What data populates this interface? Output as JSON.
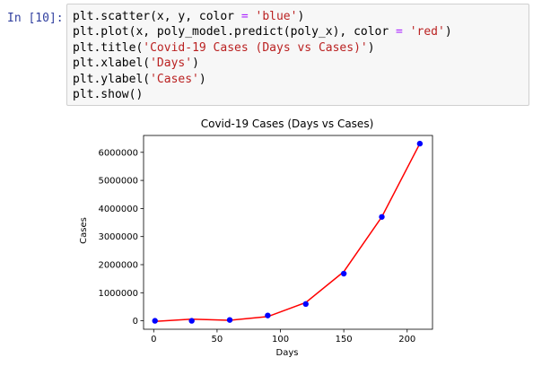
{
  "notebook": {
    "prompt": "In [10]:",
    "code_lines": [
      [
        {
          "t": "plt.scatter(x, y, color "
        },
        {
          "t": "=",
          "c": "op"
        },
        {
          "t": " "
        },
        {
          "t": "'blue'",
          "c": "kw-str"
        },
        {
          "t": ")"
        }
      ],
      [
        {
          "t": "plt.plot(x, poly_model.predict(poly_x), color "
        },
        {
          "t": "=",
          "c": "op"
        },
        {
          "t": " "
        },
        {
          "t": "'red'",
          "c": "kw-str"
        },
        {
          "t": ")"
        }
      ],
      [
        {
          "t": "plt.title("
        },
        {
          "t": "'Covid-19 Cases (Days vs Cases)'",
          "c": "kw-str"
        },
        {
          "t": ")"
        }
      ],
      [
        {
          "t": "plt.xlabel("
        },
        {
          "t": "'Days'",
          "c": "kw-str"
        },
        {
          "t": ")"
        }
      ],
      [
        {
          "t": "plt.ylabel("
        },
        {
          "t": "'Cases'",
          "c": "kw-str"
        },
        {
          "t": ")"
        }
      ],
      [
        {
          "t": "plt.show()"
        }
      ]
    ]
  },
  "chart_data": {
    "type": "scatter",
    "title": "Covid-19 Cases (Days vs Cases)",
    "xlabel": "Days",
    "ylabel": "Cases",
    "xlim": [
      -8,
      220
    ],
    "ylim": [
      -300000,
      6600000
    ],
    "xticks": [
      0,
      50,
      100,
      150,
      200
    ],
    "yticks": [
      0,
      1000000,
      2000000,
      3000000,
      4000000,
      5000000,
      6000000
    ],
    "ytick_labels": [
      "0",
      "1000000",
      "2000000",
      "3000000",
      "4000000",
      "5000000",
      "6000000"
    ],
    "series": [
      {
        "kind": "scatter",
        "color": "#0000ff",
        "x": [
          1,
          30,
          60,
          90,
          120,
          150,
          180,
          210
        ],
        "y": [
          0,
          0,
          30000,
          190000,
          600000,
          1680000,
          3700000,
          6310000
        ]
      },
      {
        "kind": "line",
        "color": "#ff0000",
        "x": [
          1,
          30,
          60,
          90,
          120,
          150,
          180,
          210
        ],
        "y": [
          -20000,
          60000,
          20000,
          150000,
          650000,
          1750000,
          3700000,
          6310000
        ]
      }
    ],
    "grid": false
  }
}
